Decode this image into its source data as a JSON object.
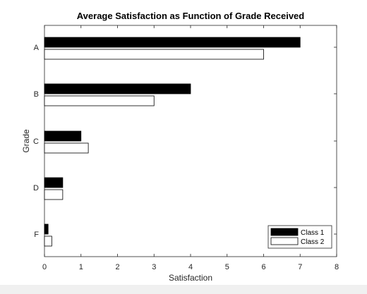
{
  "chart_data": {
    "type": "bar",
    "orientation": "horizontal",
    "title": "Average Satisfaction as Function of Grade Received",
    "xlabel": "Satisfaction",
    "ylabel": "Grade",
    "categories": [
      "A",
      "B",
      "C",
      "D",
      "F"
    ],
    "series": [
      {
        "name": "Class 1",
        "values": [
          7,
          4,
          1,
          0.5,
          0.1
        ],
        "color": "#000000"
      },
      {
        "name": "Class 2",
        "values": [
          6,
          3,
          1.2,
          0.5,
          0.2
        ],
        "color": "#ffffff"
      }
    ],
    "xlim": [
      0,
      8
    ],
    "xticks": [
      "0",
      "1",
      "2",
      "3",
      "4",
      "5",
      "6",
      "7",
      "8"
    ],
    "grid": false,
    "legend_position": "bottom-right"
  }
}
